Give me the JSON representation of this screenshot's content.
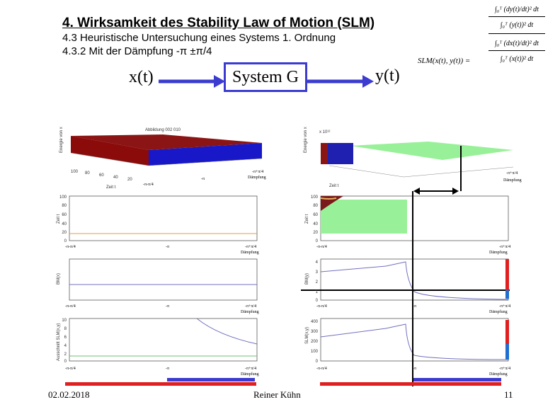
{
  "header": {
    "title": "4.    Wirksamkeit des Stability Law of Motion (SLM)",
    "line1": "4.3    Heuristische Untersuchung eines Systems 1. Ordnung",
    "line2": "4.3.2 Mit der Dämpfung -π ±π/4"
  },
  "system": {
    "input": "x(t)",
    "box": "System G",
    "output": "y(t)"
  },
  "formula": {
    "lhs": "SLM(x(t), y(t)) =",
    "num1": "∫₀ᵀ (dy(t)/dt)² dt",
    "den1": "∫₀ᵀ (y(t))² dt",
    "num2": "∫₀ᵀ (dx(t)/dt)² dt",
    "den2": "∫₀ᵀ (x(t))² dt"
  },
  "plots": {
    "left3d_title": "Abbildung 002 010",
    "right3d_scale": "x 10¹²",
    "z_label": "Energie von x",
    "zeit_label": "Zeit t",
    "axis_left": "-π-π/4",
    "axis_mid": "-π",
    "axis_right": "-π+π/4",
    "daempfung": "Dämpfung",
    "y_zeit": "Zeit t",
    "y_bm": "BM(x)",
    "y_ausschnitt": "Ausschnitt SLM(x,y)",
    "y_bm_right": "BM(y)",
    "y_slm_right": "SLM(x,y)",
    "t_ticks": [
      "100",
      "80",
      "60",
      "40",
      "20",
      "0"
    ],
    "slm_ticks_left": [
      "10",
      "8",
      "6",
      "4",
      "2",
      "0"
    ],
    "bm_ticks_right": [
      "4",
      "3",
      "2",
      "1",
      "0"
    ],
    "slm_ticks_right": [
      "400",
      "300",
      "200",
      "100",
      "0"
    ],
    "ticks_3d": [
      "100",
      "80",
      "60",
      "40",
      "20"
    ]
  },
  "colors": {
    "blue": "#3b3bd0",
    "red": "#e02020",
    "green": "#90ee90",
    "darkred": "#8b0000"
  },
  "footer": {
    "date": "02.02.2018",
    "author": "Reiner Kühn",
    "page": "11"
  }
}
